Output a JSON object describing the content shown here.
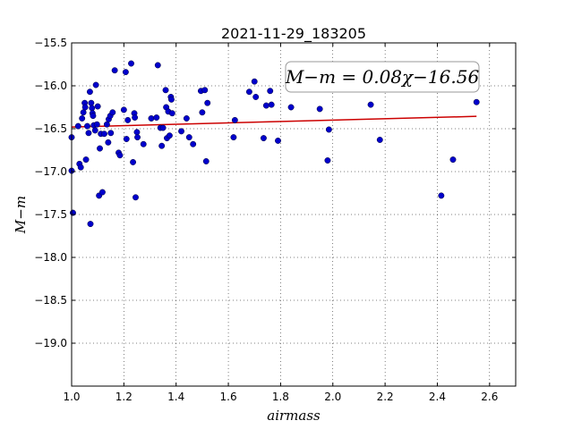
{
  "chart_data": {
    "type": "scatter",
    "title": "2021-11-29_183205",
    "xlabel": "airmass",
    "ylabel": "M−m",
    "xlim": [
      1.0,
      2.7
    ],
    "ylim": [
      -15.5,
      -19.5
    ],
    "y_inverted": true,
    "grid": true,
    "xticks": [
      1.0,
      1.2,
      1.4,
      1.6,
      1.8,
      2.0,
      2.2,
      2.4,
      2.6
    ],
    "xtick_labels": [
      "1.0",
      "1.2",
      "1.4",
      "1.6",
      "1.8",
      "2.0",
      "2.2",
      "2.4",
      "2.6"
    ],
    "yticks": [
      -15.5,
      -16.0,
      -16.5,
      -17.0,
      -17.5,
      -18.0,
      -18.5,
      -19.0
    ],
    "ytick_labels": [
      "−15.5",
      "−16.0",
      "−16.5",
      "−17.0",
      "−17.5",
      "−18.0",
      "−18.5",
      "−19.0"
    ],
    "annotation": "M−m = 0.08χ−16.56",
    "annotation_location": "upper-right",
    "point_color": "#0000cc",
    "fit_color": "#cc0000",
    "fit": {
      "slope": 0.08,
      "intercept": -16.56,
      "x_range": [
        1.0,
        2.55
      ]
    },
    "points": [
      [
        1.0,
        -16.6
      ],
      [
        1.0,
        -16.99
      ],
      [
        1.005,
        -17.48
      ],
      [
        1.025,
        -16.47
      ],
      [
        1.03,
        -16.91
      ],
      [
        1.035,
        -16.95
      ],
      [
        1.04,
        -16.38
      ],
      [
        1.045,
        -16.31
      ],
      [
        1.05,
        -16.2
      ],
      [
        1.052,
        -16.25
      ],
      [
        1.055,
        -16.86
      ],
      [
        1.06,
        -16.47
      ],
      [
        1.065,
        -16.55
      ],
      [
        1.07,
        -16.07
      ],
      [
        1.072,
        -17.61
      ],
      [
        1.075,
        -16.2
      ],
      [
        1.078,
        -16.26
      ],
      [
        1.08,
        -16.32
      ],
      [
        1.082,
        -16.35
      ],
      [
        1.085,
        -16.46
      ],
      [
        1.09,
        -16.52
      ],
      [
        1.093,
        -15.99
      ],
      [
        1.097,
        -16.45
      ],
      [
        1.1,
        -16.24
      ],
      [
        1.105,
        -17.28
      ],
      [
        1.108,
        -16.73
      ],
      [
        1.112,
        -16.56
      ],
      [
        1.118,
        -17.24
      ],
      [
        1.125,
        -16.56
      ],
      [
        1.135,
        -16.45
      ],
      [
        1.14,
        -16.66
      ],
      [
        1.142,
        -16.39
      ],
      [
        1.148,
        -16.35
      ],
      [
        1.15,
        -16.55
      ],
      [
        1.157,
        -16.31
      ],
      [
        1.165,
        -15.82
      ],
      [
        1.18,
        -16.78
      ],
      [
        1.185,
        -16.81
      ],
      [
        1.2,
        -16.28
      ],
      [
        1.207,
        -15.84
      ],
      [
        1.21,
        -16.62
      ],
      [
        1.215,
        -16.4
      ],
      [
        1.228,
        -15.74
      ],
      [
        1.235,
        -16.89
      ],
      [
        1.24,
        -16.32
      ],
      [
        1.242,
        -16.37
      ],
      [
        1.245,
        -17.3
      ],
      [
        1.25,
        -16.54
      ],
      [
        1.252,
        -16.6
      ],
      [
        1.275,
        -16.68
      ],
      [
        1.305,
        -16.38
      ],
      [
        1.325,
        -16.37
      ],
      [
        1.33,
        -15.76
      ],
      [
        1.34,
        -16.49
      ],
      [
        1.345,
        -16.7
      ],
      [
        1.35,
        -16.49
      ],
      [
        1.36,
        -16.05
      ],
      [
        1.362,
        -16.25
      ],
      [
        1.365,
        -16.61
      ],
      [
        1.37,
        -16.3
      ],
      [
        1.375,
        -16.58
      ],
      [
        1.38,
        -16.13
      ],
      [
        1.382,
        -16.16
      ],
      [
        1.385,
        -16.32
      ],
      [
        1.42,
        -16.53
      ],
      [
        1.44,
        -16.38
      ],
      [
        1.45,
        -16.6
      ],
      [
        1.465,
        -16.68
      ],
      [
        1.495,
        -16.06
      ],
      [
        1.5,
        -16.31
      ],
      [
        1.51,
        -16.05
      ],
      [
        1.515,
        -16.88
      ],
      [
        1.52,
        -16.2
      ],
      [
        1.62,
        -16.6
      ],
      [
        1.625,
        -16.4
      ],
      [
        1.68,
        -16.07
      ],
      [
        1.7,
        -15.95
      ],
      [
        1.705,
        -16.13
      ],
      [
        1.735,
        -16.61
      ],
      [
        1.745,
        -16.23
      ],
      [
        1.76,
        -16.06
      ],
      [
        1.765,
        -16.22
      ],
      [
        1.79,
        -16.64
      ],
      [
        1.84,
        -16.25
      ],
      [
        1.95,
        -16.27
      ],
      [
        1.98,
        -16.87
      ],
      [
        1.985,
        -16.51
      ],
      [
        2.145,
        -16.22
      ],
      [
        2.18,
        -16.63
      ],
      [
        2.415,
        -17.28
      ],
      [
        2.46,
        -16.86
      ],
      [
        2.55,
        -16.19
      ]
    ]
  }
}
